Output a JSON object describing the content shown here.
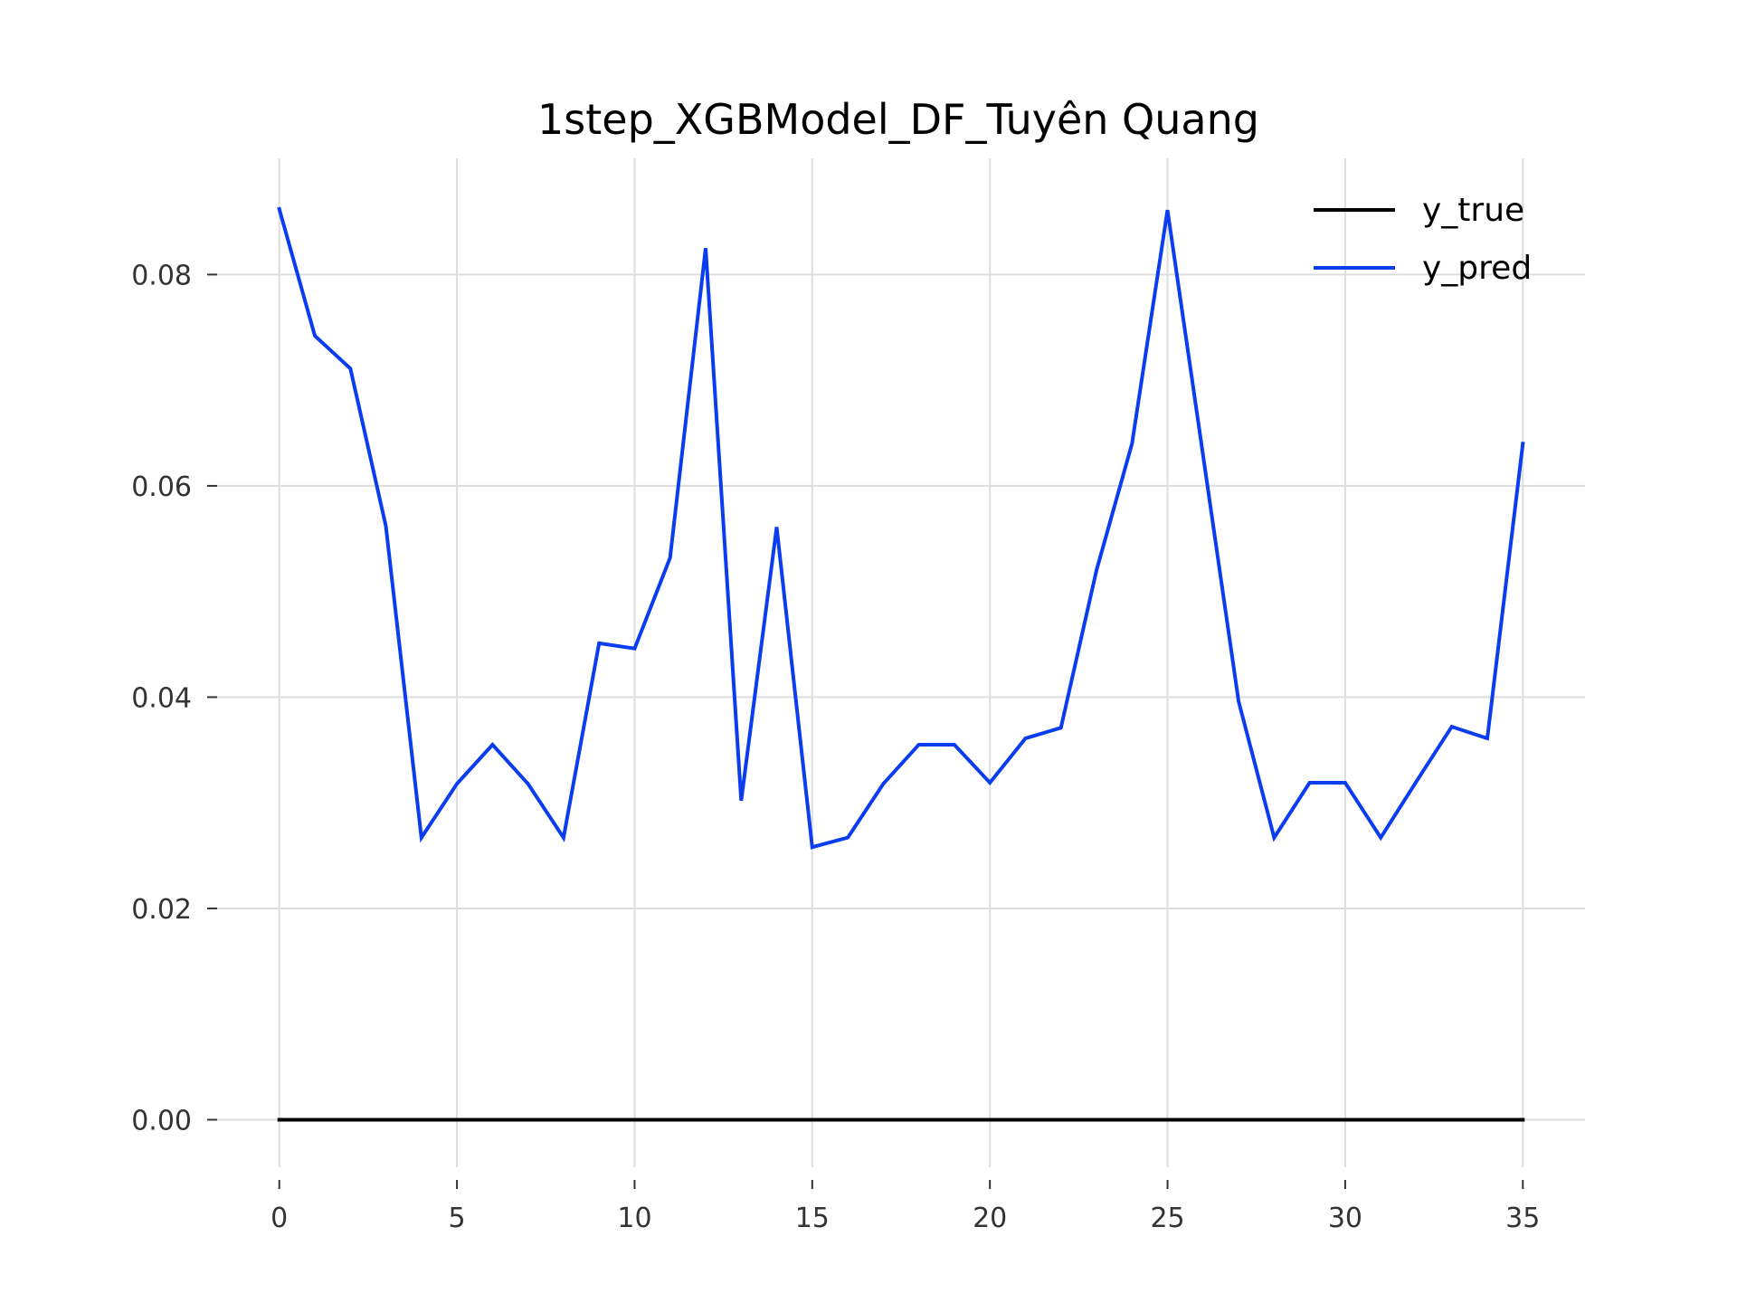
{
  "chart_data": {
    "type": "line",
    "title": "1step_XGBModel_DF_Tuyên Quang",
    "xlabel": "",
    "ylabel": "",
    "xlim": [
      -1.75,
      36.75
    ],
    "ylim": [
      -0.0045,
      0.091
    ],
    "x_ticks": [
      0,
      5,
      10,
      15,
      20,
      25,
      30,
      35
    ],
    "x_tick_labels": [
      "0",
      "5",
      "10",
      "15",
      "20",
      "25",
      "30",
      "35"
    ],
    "y_ticks": [
      0,
      0.02,
      0.04,
      0.06,
      0.08
    ],
    "y_tick_labels": [
      "0.00",
      "0.02",
      "0.04",
      "0.06",
      "0.08"
    ],
    "grid": true,
    "legend_position": "top-right",
    "series": [
      {
        "name": "y_true",
        "color": "#000000",
        "x": [
          0,
          1,
          2,
          3,
          4,
          5,
          6,
          7,
          8,
          9,
          10,
          11,
          12,
          13,
          14,
          15,
          16,
          17,
          18,
          19,
          20,
          21,
          22,
          23,
          24,
          25,
          26,
          27,
          28,
          29,
          30,
          31,
          32,
          33,
          34,
          35
        ],
        "values": [
          0,
          0,
          0,
          0,
          0,
          0,
          0,
          0,
          0,
          0,
          0,
          0,
          0,
          0,
          0,
          0,
          0,
          0,
          0,
          0,
          0,
          0,
          0,
          0,
          0,
          0,
          0,
          0,
          0,
          0,
          0,
          0,
          0,
          0,
          0,
          0
        ]
      },
      {
        "name": "y_pred",
        "color": "#0a3cf0",
        "x": [
          0,
          1,
          2,
          3,
          4,
          5,
          6,
          7,
          8,
          9,
          10,
          11,
          12,
          13,
          14,
          15,
          16,
          17,
          18,
          19,
          20,
          21,
          22,
          23,
          24,
          25,
          26,
          27,
          28,
          29,
          30,
          31,
          32,
          33,
          34,
          35
        ],
        "values": [
          0.0862,
          0.0742,
          0.0711,
          0.0562,
          0.0267,
          0.0318,
          0.0355,
          0.0318,
          0.0267,
          0.0451,
          0.0446,
          0.0532,
          0.0825,
          0.0302,
          0.0561,
          0.0258,
          0.0267,
          0.0318,
          0.0355,
          0.0355,
          0.0319,
          0.0361,
          0.0371,
          0.052,
          0.064,
          0.0861,
          0.0629,
          0.0396,
          0.0267,
          0.0319,
          0.0319,
          0.0267,
          0.032,
          0.0372,
          0.0361,
          0.064
        ]
      }
    ]
  }
}
